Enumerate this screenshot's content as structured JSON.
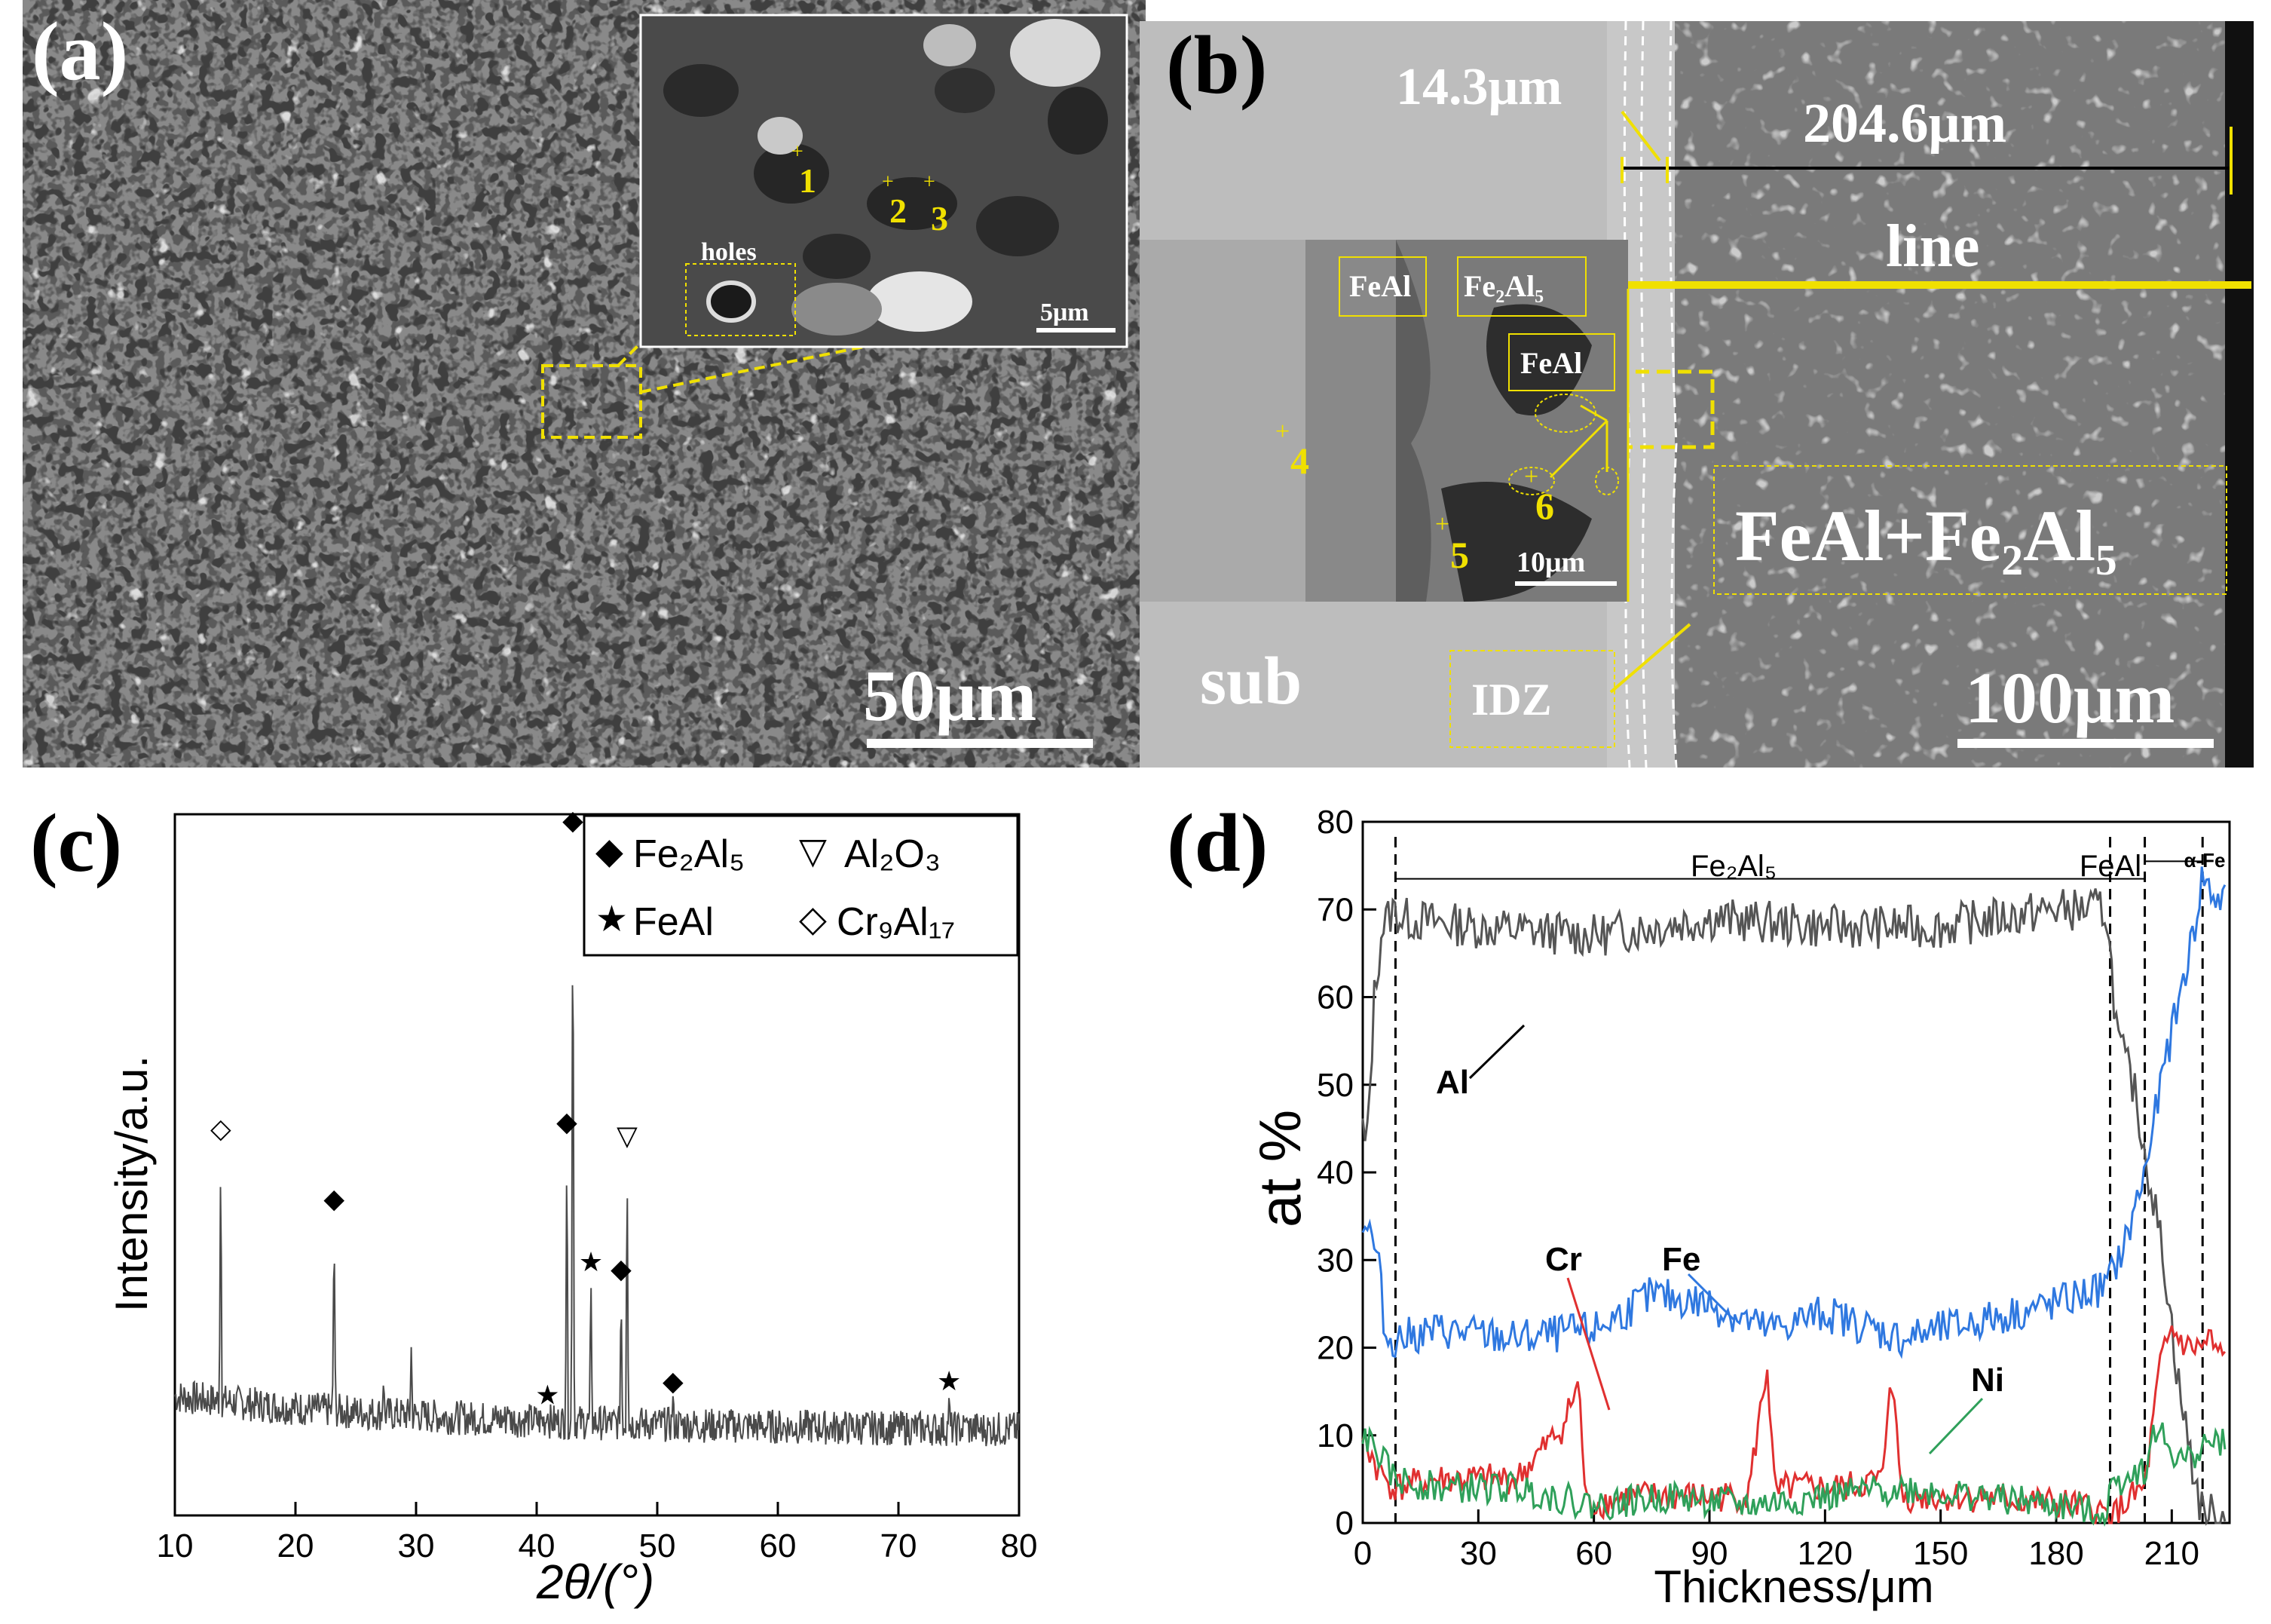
{
  "panel_a": {
    "letter": "(a)",
    "inset_labels": [
      "1",
      "2",
      "3"
    ],
    "holes_label": "holes",
    "inset_scale": "5μm",
    "scale": "50μm"
  },
  "panel_b": {
    "letter": "(b)",
    "dim_small": "14.3μm",
    "dim_large": "204.6μm",
    "line_label": "line",
    "layer_label": "FeAl+Fe₂Al₅",
    "sub_label": "sub",
    "idz_label": "IDZ",
    "scale": "100μm",
    "inset": {
      "label_feal_1": "FeAl",
      "label_fe2al5": "Fe₂Al₅",
      "label_feal_2": "FeAl",
      "points": [
        "4",
        "5",
        "6"
      ],
      "scale": "10μm"
    }
  },
  "panel_c": {
    "letter": "(c)",
    "legend": [
      "Fe₂Al₅",
      "Al₂O₃",
      "FeAl",
      "Cr₉Al₁₇"
    ],
    "chart_data": {
      "type": "line",
      "title": "",
      "xlabel": "2θ/(°)",
      "ylabel": "Intensity/a.u.",
      "xlim": [
        10,
        80
      ],
      "xticks": [
        10,
        20,
        30,
        40,
        50,
        60,
        70,
        80
      ],
      "baseline": 0.12,
      "peaks": [
        {
          "x": 13.8,
          "y": 0.53,
          "phase": "Cr9Al17"
        },
        {
          "x": 23.2,
          "y": 0.43,
          "phase": "Fe2Al5"
        },
        {
          "x": 27.3,
          "y": 0.19,
          "phase": ""
        },
        {
          "x": 29.6,
          "y": 0.24,
          "phase": ""
        },
        {
          "x": 37.6,
          "y": 0.16,
          "phase": ""
        },
        {
          "x": 40.9,
          "y": 0.15,
          "phase": "FeAl"
        },
        {
          "x": 42.5,
          "y": 0.54,
          "phase": "Fe2Al5"
        },
        {
          "x": 43.0,
          "y": 0.97,
          "phase": "Fe2Al5"
        },
        {
          "x": 44.5,
          "y": 0.34,
          "phase": "FeAl"
        },
        {
          "x": 47.0,
          "y": 0.33,
          "phase": "Fe2Al5"
        },
        {
          "x": 47.5,
          "y": 0.52,
          "phase": "Al2O3"
        },
        {
          "x": 51.3,
          "y": 0.17,
          "phase": "Fe2Al5"
        },
        {
          "x": 65.6,
          "y": 0.14,
          "phase": ""
        },
        {
          "x": 74.2,
          "y": 0.17,
          "phase": "FeAl"
        },
        {
          "x": 75.6,
          "y": 0.14,
          "phase": ""
        }
      ],
      "markers": [
        {
          "x": 13.8,
          "symbol": "◇"
        },
        {
          "x": 23.2,
          "symbol": "◆"
        },
        {
          "x": 40.9,
          "symbol": "★"
        },
        {
          "x": 42.5,
          "symbol": "◆"
        },
        {
          "x": 43.0,
          "symbol": "◆"
        },
        {
          "x": 44.5,
          "symbol": "★"
        },
        {
          "x": 47.0,
          "symbol": "◆"
        },
        {
          "x": 47.5,
          "symbol": "▽"
        },
        {
          "x": 51.3,
          "symbol": "◆"
        },
        {
          "x": 74.2,
          "symbol": "★"
        }
      ]
    }
  },
  "panel_d": {
    "letter": "(d)",
    "region_labels": [
      "Fe₂Al₅",
      "FeAl",
      "α-Fe"
    ],
    "series_labels": [
      "Al",
      "Cr",
      "Fe",
      "Ni"
    ],
    "chart_data": {
      "type": "line",
      "title": "",
      "xlabel": "Thickness/μm",
      "ylabel": "at %",
      "xlim": [
        0,
        225
      ],
      "ylim": [
        0,
        80
      ],
      "xticks": [
        0,
        30,
        60,
        90,
        120,
        150,
        180,
        210
      ],
      "yticks": [
        0,
        10,
        20,
        30,
        40,
        50,
        60,
        70,
        80
      ],
      "region_boundaries": [
        8.5,
        194,
        203,
        218
      ],
      "series": [
        {
          "name": "Al",
          "color": "#555555",
          "x": [
            0,
            1,
            3,
            5,
            8,
            10,
            30,
            60,
            90,
            120,
            150,
            180,
            193,
            196,
            200,
            204,
            208,
            212,
            216,
            218,
            220,
            222,
            224
          ],
          "y": [
            45,
            42,
            60,
            68,
            70,
            69,
            68,
            67,
            69,
            68,
            68,
            70,
            70,
            55,
            50,
            40,
            30,
            15,
            5,
            1,
            1,
            0.5,
            0.5
          ]
        },
        {
          "name": "Fe",
          "color": "#2f78e0",
          "x": [
            0,
            2,
            4,
            6,
            8,
            20,
            40,
            60,
            75,
            90,
            105,
            120,
            140,
            160,
            180,
            193,
            198,
            203,
            208,
            213,
            216,
            218,
            220,
            222,
            224
          ],
          "y": [
            35,
            33,
            30,
            21,
            21,
            22,
            21,
            22,
            26,
            25,
            22,
            24,
            21,
            23,
            25,
            27,
            32,
            40,
            52,
            62,
            68,
            74,
            72,
            71,
            71
          ]
        },
        {
          "name": "Cr",
          "color": "#e03030",
          "x": [
            0,
            4,
            8,
            20,
            40,
            52,
            56,
            58,
            70,
            90,
            100,
            105,
            107,
            110,
            125,
            135,
            137,
            140,
            160,
            185,
            193,
            194,
            200,
            203,
            207,
            210,
            214,
            218,
            220,
            222,
            224
          ],
          "y": [
            10,
            6,
            4,
            5,
            5,
            11,
            16,
            2,
            3,
            3,
            3,
            18,
            3,
            4,
            4,
            5,
            18,
            3,
            3,
            2,
            1,
            0.5,
            3,
            4,
            18,
            22,
            20,
            20,
            21,
            19,
            19
          ]
        },
        {
          "name": "Ni",
          "color": "#2fa05a",
          "x": [
            0,
            4,
            8,
            20,
            40,
            60,
            80,
            100,
            120,
            140,
            160,
            180,
            193,
            194,
            200,
            203,
            206,
            210,
            214,
            218,
            222,
            224
          ],
          "y": [
            10,
            8,
            5,
            4,
            4,
            2,
            3,
            2,
            3,
            4,
            3,
            2,
            1,
            4,
            6,
            6,
            11,
            8,
            7,
            9,
            9,
            10
          ]
        }
      ]
    }
  }
}
